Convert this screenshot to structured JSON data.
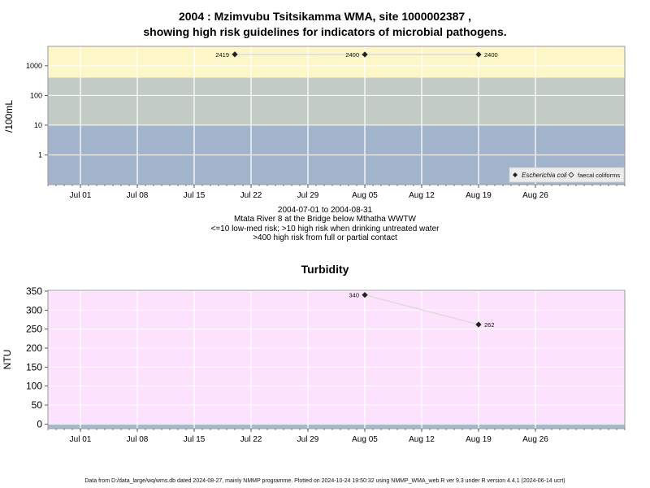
{
  "colors": {
    "band_low": "#a2b4cc",
    "band_mid": "#c2cbc4",
    "band_high": "#fdf6c9",
    "turbidity_bg": "#fde2fd",
    "turbidity_low_band": "#a8b8cc",
    "series_line": "#dedede",
    "gridline": "#ffffff",
    "frame": "#888888"
  },
  "top_chart": {
    "title_line1": "2004 : Mzimvubu Tsitsikamma WMA, site 1000002387 ,",
    "title_line2": "showing high risk guidelines for indicators of microbial pathogens.",
    "caption_lines": [
      "2004-07-01 to 2004-08-31",
      "Mtata River 8 at the Bridge below Mthatha WWTW",
      "<=10 low-med risk; >10 high risk when drinking untreated water",
      ">400 high risk from full or partial contact"
    ],
    "legend": {
      "ecoli": "Escherichia coli",
      "faecal": "faecal coliforms"
    }
  },
  "bottom_chart": {
    "title": "Turbidity"
  },
  "footer": "Data from D:/data_large/wq/wms.db dated 2024-08-27, mainly NMMP programme. Plotted on 2024-10-24 19:50:32 using NMMP_WMA_web.R ver 9.3 under R version 4.4.1 (2024-06-14 ucrt)",
  "chart_data": [
    {
      "type": "line",
      "title": "2004 : Mzimvubu Tsitsikamma WMA, site 1000002387 , showing high risk guidelines for indicators of microbial pathogens.",
      "ylabel": "/100mL",
      "xlabel": "",
      "y_scale": "log10",
      "ylim": [
        0.1,
        4500
      ],
      "xlim": [
        "2004-06-27",
        "2004-09-06"
      ],
      "yticks": [
        1,
        10,
        100,
        1000
      ],
      "ytick_labels": [
        "1",
        "10",
        "100",
        "1000"
      ],
      "xticks": [
        "2004-07-01",
        "2004-07-08",
        "2004-07-15",
        "2004-07-22",
        "2004-07-29",
        "2004-08-05",
        "2004-08-12",
        "2004-08-19",
        "2004-08-26"
      ],
      "xtick_labels": [
        "Jul 01",
        "Jul 08",
        "Jul 15",
        "Jul 22",
        "Jul 29",
        "Aug 05",
        "Aug 12",
        "Aug 19",
        "Aug 26"
      ],
      "bands": [
        {
          "from": 0.1,
          "to": 10,
          "color": "#a2b4cc"
        },
        {
          "from": 10,
          "to": 400,
          "color": "#c2cbc4"
        },
        {
          "from": 400,
          "to": 4500,
          "color": "#fdf6c9"
        }
      ],
      "series": [
        {
          "name": "Escherichia coli",
          "marker": "filled-diamond",
          "x": [
            "2004-07-20",
            "2004-08-05",
            "2004-08-19"
          ],
          "y": [
            2419,
            2400,
            2400
          ],
          "labels": [
            "2419",
            "2400",
            "2400"
          ]
        },
        {
          "name": "faecal coliforms",
          "marker": "open-diamond",
          "x": [],
          "y": [],
          "labels": []
        }
      ],
      "legend_position": "bottom-right",
      "grid": true
    },
    {
      "type": "line",
      "title": "Turbidity",
      "ylabel": "NTU",
      "xlabel": "",
      "ylim": [
        -12,
        352
      ],
      "xlim": [
        "2004-06-27",
        "2004-09-06"
      ],
      "yticks": [
        0,
        50,
        100,
        150,
        200,
        250,
        300,
        350
      ],
      "ytick_labels": [
        "0",
        "50",
        "100",
        "150",
        "200",
        "250",
        "300",
        "350"
      ],
      "xticks": [
        "2004-07-01",
        "2004-07-08",
        "2004-07-15",
        "2004-07-22",
        "2004-07-29",
        "2004-08-05",
        "2004-08-12",
        "2004-08-19",
        "2004-08-26"
      ],
      "xtick_labels": [
        "Jul 01",
        "Jul 08",
        "Jul 15",
        "Jul 22",
        "Jul 29",
        "Aug 05",
        "Aug 12",
        "Aug 19",
        "Aug 26"
      ],
      "bands": [
        {
          "from": -12,
          "to": 1,
          "color": "#a8b8cc"
        }
      ],
      "series": [
        {
          "name": "",
          "marker": "filled-diamond",
          "x": [
            "2004-08-05",
            "2004-08-19"
          ],
          "y": [
            340,
            262
          ],
          "labels": [
            "340",
            "262"
          ]
        }
      ],
      "grid": true
    }
  ]
}
